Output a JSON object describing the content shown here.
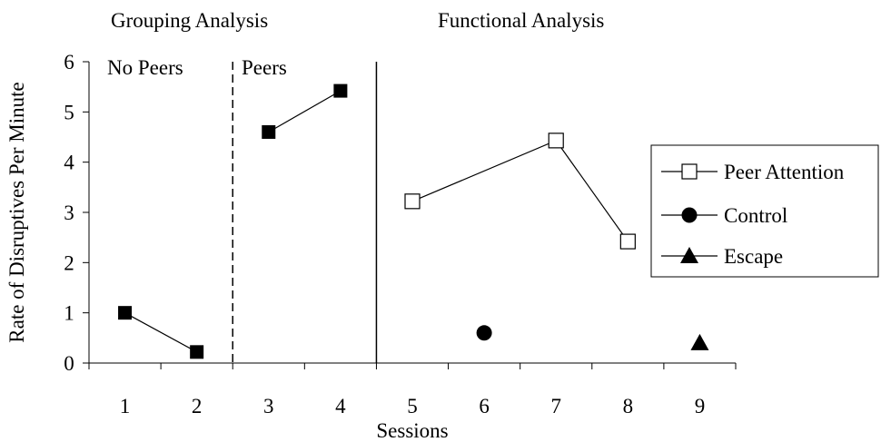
{
  "chart_data": {
    "type": "line",
    "title": "",
    "xlabel": "Sessions",
    "ylabel": "Rate of Disruptives Per Minute",
    "xlim": [
      0.5,
      9.5
    ],
    "ylim": [
      0,
      6
    ],
    "x_ticks": [
      "1",
      "2",
      "3",
      "4",
      "5",
      "6",
      "7",
      "8",
      "9"
    ],
    "y_ticks": [
      "0",
      "1",
      "2",
      "3",
      "4",
      "5",
      "6"
    ],
    "grid": false,
    "legend_position": "right",
    "phase_titles": [
      "Grouping Analysis",
      "Functional Analysis"
    ],
    "condition_labels": [
      "No Peers",
      "Peers"
    ],
    "groups": [
      {
        "condition": "No Peers",
        "marker": "filled-square",
        "x": [
          1,
          2
        ],
        "y": [
          1.0,
          0.22
        ]
      },
      {
        "condition": "Peers",
        "marker": "filled-square",
        "x": [
          3,
          4
        ],
        "y": [
          4.6,
          5.42
        ]
      }
    ],
    "series": [
      {
        "name": "Peer Attention",
        "marker": "open-square",
        "x": [
          5,
          7,
          8
        ],
        "y": [
          3.22,
          4.43,
          2.42
        ]
      },
      {
        "name": "Control",
        "marker": "filled-circle",
        "x": [
          6
        ],
        "y": [
          0.6
        ]
      },
      {
        "name": "Escape",
        "marker": "filled-triangle",
        "x": [
          9
        ],
        "y": [
          0.4
        ]
      }
    ],
    "phase_lines": [
      {
        "x": 2.5,
        "style": "dashed"
      },
      {
        "x": 4.5,
        "style": "solid"
      }
    ]
  }
}
